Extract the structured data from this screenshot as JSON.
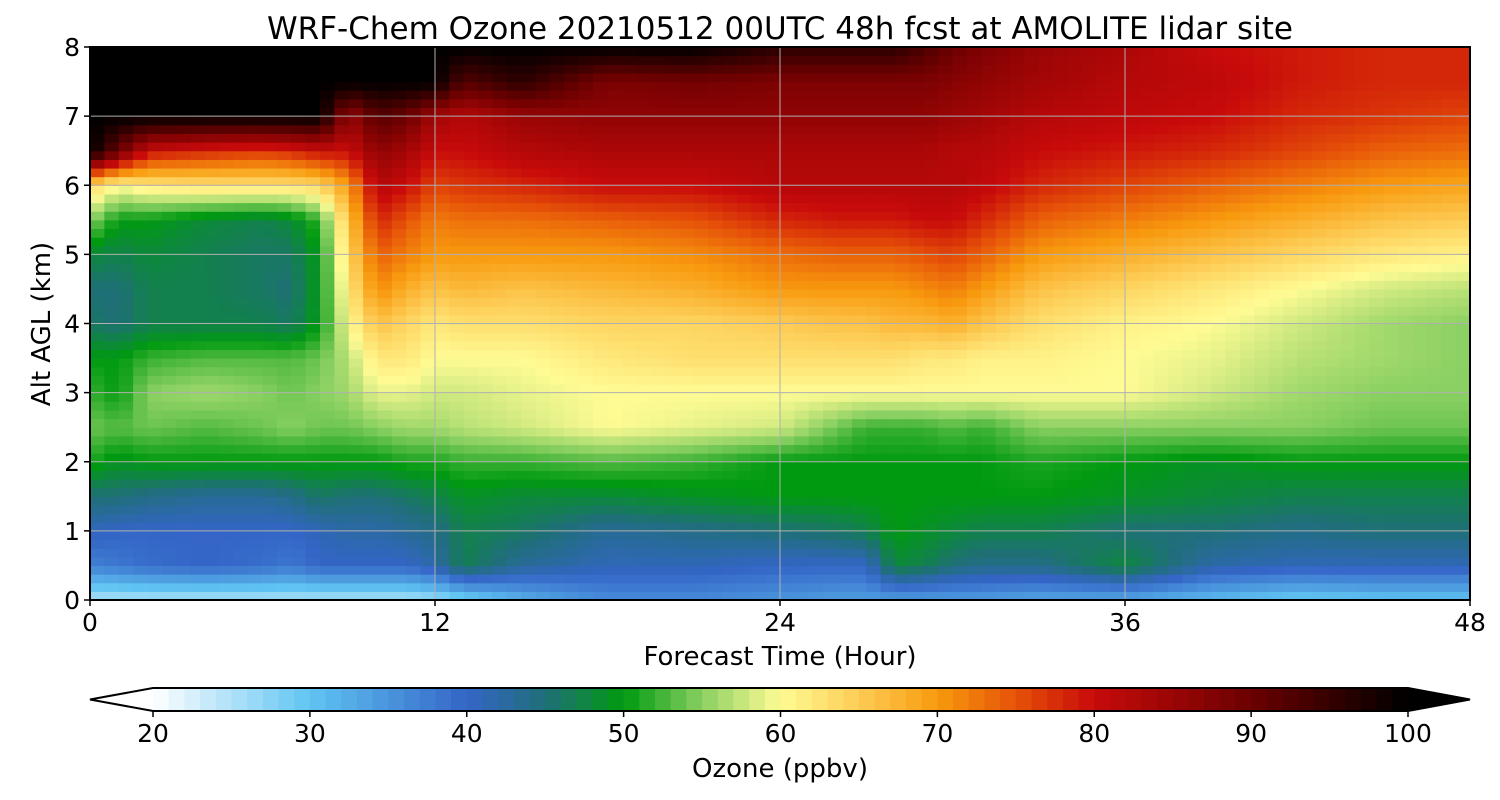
{
  "chart_data": {
    "type": "heatmap",
    "title": "WRF-Chem Ozone  20210512 00UTC 48h fcst at AMOLITE lidar site",
    "xlabel": "Forecast Time (Hour)",
    "ylabel": "Alt AGL (km)",
    "xlim": [
      0,
      48
    ],
    "ylim": [
      0,
      8
    ],
    "xticks": [
      "0",
      "12",
      "24",
      "36",
      "48"
    ],
    "yticks": [
      "0",
      "1",
      "2",
      "3",
      "4",
      "5",
      "6",
      "7",
      "8"
    ],
    "grid": true,
    "colorbar": {
      "label": "Ozone  (ppbv)",
      "orientation": "horizontal",
      "range": [
        20,
        100
      ],
      "ticks": [
        "20",
        "30",
        "40",
        "50",
        "60",
        "70",
        "80",
        "90",
        "100"
      ],
      "extend": "both",
      "colors": [
        {
          "v": 20,
          "c": "#ffffff"
        },
        {
          "v": 30,
          "c": "#60c4f2"
        },
        {
          "v": 40,
          "c": "#3465c7"
        },
        {
          "v": 45,
          "c": "#1f6f78"
        },
        {
          "v": 50,
          "c": "#009a10"
        },
        {
          "v": 55,
          "c": "#8ad062"
        },
        {
          "v": 60,
          "c": "#fffb94"
        },
        {
          "v": 65,
          "c": "#fdcc55"
        },
        {
          "v": 70,
          "c": "#f89a0e"
        },
        {
          "v": 75,
          "c": "#e65208"
        },
        {
          "v": 80,
          "c": "#c80a0a"
        },
        {
          "v": 90,
          "c": "#6b0000"
        },
        {
          "v": 100,
          "c": "#000000"
        }
      ]
    },
    "x_hours": [
      0,
      1,
      2,
      4,
      6,
      7,
      8,
      9,
      10,
      11,
      12,
      13,
      15,
      18,
      21,
      24,
      26,
      27,
      28,
      29,
      30,
      31,
      33,
      36,
      39,
      42,
      45,
      48
    ],
    "series": [
      {
        "alt_km": 0.0,
        "values": [
          25,
          25,
          25,
          25,
          25,
          25,
          25,
          25,
          25,
          25,
          26,
          28,
          32,
          36,
          36,
          35,
          34,
          34,
          34,
          34,
          34,
          34,
          33,
          33,
          31,
          29,
          30,
          30
        ]
      },
      {
        "alt_km": 0.5,
        "values": [
          37,
          38,
          39,
          40,
          39,
          38,
          40,
          40,
          40,
          40,
          42,
          47,
          43,
          41,
          41,
          40,
          40,
          40,
          48,
          47,
          45,
          44,
          44,
          48,
          42,
          41,
          41,
          41
        ]
      },
      {
        "alt_km": 1.0,
        "values": [
          41,
          40,
          40,
          40,
          40,
          40,
          41,
          42,
          42,
          43,
          44,
          47,
          46,
          43,
          44,
          45,
          46,
          47,
          50,
          49,
          48,
          47,
          47,
          45,
          45,
          44,
          45,
          45
        ]
      },
      {
        "alt_km": 1.5,
        "values": [
          45,
          45,
          44,
          43,
          43,
          44,
          46,
          45,
          45,
          46,
          47,
          49,
          48,
          48,
          49,
          50,
          50,
          50,
          50,
          50,
          50,
          50,
          50,
          49,
          48,
          47,
          47,
          47
        ]
      },
      {
        "alt_km": 2.0,
        "values": [
          51,
          49,
          50,
          50,
          50,
          50,
          50,
          50,
          50,
          51,
          51,
          52,
          52,
          53,
          52,
          50,
          50,
          50,
          50,
          50,
          50,
          50,
          51,
          50,
          49,
          50,
          50,
          50
        ]
      },
      {
        "alt_km": 2.5,
        "values": [
          54,
          53,
          54,
          53,
          54,
          55,
          54,
          54,
          55,
          56,
          56,
          57,
          58,
          60,
          59,
          58,
          54,
          52,
          52,
          52,
          53,
          52,
          55,
          55,
          55,
          55,
          54,
          54
        ]
      },
      {
        "alt_km": 3.0,
        "values": [
          52,
          50,
          55,
          56,
          55,
          54,
          55,
          56,
          59,
          59,
          58,
          58,
          59,
          60,
          60,
          60,
          60,
          60,
          60,
          60,
          60,
          60,
          60,
          60,
          58,
          56,
          55,
          55
        ]
      },
      {
        "alt_km": 3.5,
        "values": [
          50,
          50,
          52,
          53,
          53,
          53,
          54,
          57,
          62,
          62,
          60,
          60,
          60,
          62,
          63,
          63,
          63,
          63,
          63,
          62,
          62,
          61,
          61,
          60,
          59,
          57,
          56,
          55
        ]
      },
      {
        "alt_km": 4.0,
        "values": [
          46,
          45,
          47,
          47,
          47,
          46,
          50,
          60,
          66,
          64,
          62,
          63,
          63,
          64,
          64,
          65,
          66,
          66,
          67,
          67,
          68,
          66,
          63,
          61,
          60,
          58,
          56,
          55
        ]
      },
      {
        "alt_km": 4.5,
        "values": [
          45,
          45,
          47,
          47,
          46,
          45,
          50,
          62,
          71,
          68,
          66,
          67,
          66,
          67,
          68,
          70,
          70,
          70,
          70,
          71,
          72,
          70,
          66,
          64,
          62,
          60,
          58,
          57
        ]
      },
      {
        "alt_km": 5.0,
        "values": [
          48,
          47,
          48,
          47,
          46,
          46,
          50,
          64,
          74,
          72,
          70,
          70,
          70,
          70,
          71,
          73,
          74,
          74,
          74,
          75,
          76,
          74,
          70,
          68,
          66,
          64,
          62,
          61
        ]
      },
      {
        "alt_km": 5.5,
        "values": [
          55,
          50,
          50,
          48,
          47,
          48,
          52,
          66,
          78,
          75,
          72,
          73,
          73,
          74,
          75,
          78,
          79,
          79,
          79,
          80,
          80,
          78,
          74,
          72,
          70,
          68,
          66,
          65
        ]
      },
      {
        "alt_km": 6.0,
        "values": [
          64,
          60,
          62,
          63,
          63,
          63,
          64,
          70,
          82,
          80,
          76,
          77,
          78,
          80,
          80,
          82,
          82,
          82,
          82,
          82,
          82,
          81,
          78,
          76,
          74,
          72,
          70,
          69
        ]
      },
      {
        "alt_km": 6.5,
        "values": [
          100,
          90,
          80,
          78,
          77,
          78,
          80,
          80,
          86,
          84,
          80,
          80,
          82,
          83,
          83,
          83,
          83,
          83,
          83,
          83,
          82,
          82,
          80,
          79,
          78,
          76,
          74,
          73
        ]
      },
      {
        "alt_km": 7.0,
        "values": [
          100,
          100,
          100,
          100,
          100,
          100,
          100,
          85,
          92,
          90,
          84,
          82,
          85,
          86,
          86,
          86,
          86,
          86,
          86,
          86,
          85,
          84,
          82,
          81,
          80,
          78,
          77,
          76
        ]
      },
      {
        "alt_km": 7.5,
        "values": [
          100,
          100,
          100,
          100,
          100,
          100,
          100,
          100,
          100,
          100,
          100,
          92,
          96,
          88,
          89,
          88,
          88,
          88,
          88,
          88,
          87,
          86,
          84,
          82,
          81,
          79,
          78,
          78
        ]
      },
      {
        "alt_km": 8.0,
        "values": [
          100,
          100,
          100,
          100,
          100,
          100,
          100,
          100,
          100,
          100,
          100,
          100,
          100,
          100,
          100,
          96,
          96,
          96,
          96,
          93,
          90,
          88,
          85,
          83,
          80,
          79,
          78,
          78
        ]
      }
    ]
  }
}
